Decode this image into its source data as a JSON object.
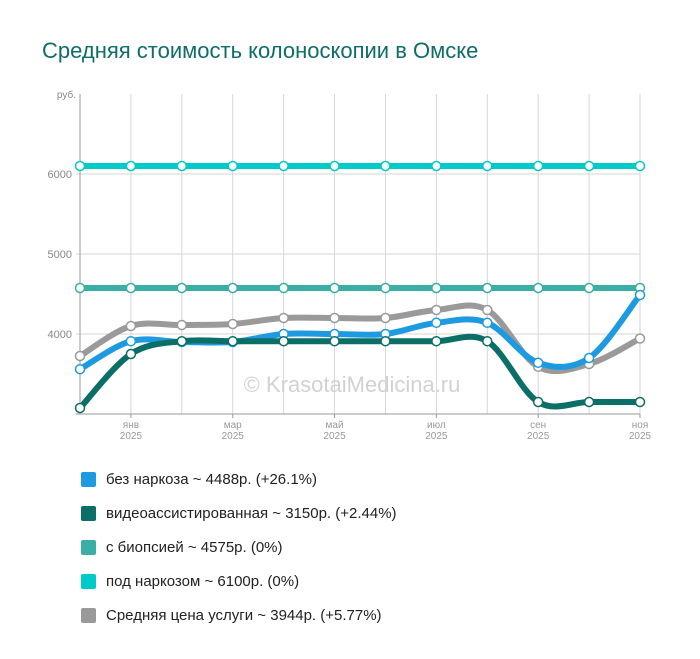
{
  "title": "Средняя стоимость колоноскопии в Омске",
  "watermark": "© KrasotaiMedicina.ru",
  "chart_data": {
    "type": "line",
    "title": "Средняя стоимость колоноскопии в Омске",
    "ylabel": "руб.",
    "ylim": [
      3000,
      7000
    ],
    "yticks": [
      "4000",
      "5000",
      "6000"
    ],
    "ytick_values": [
      4000,
      5000,
      6000
    ],
    "x": [
      "дек 2024",
      "янв 2025",
      "фев 2025",
      "мар 2025",
      "апр 2025",
      "май 2025",
      "июн 2025",
      "июл 2025",
      "авг 2025",
      "сен 2025",
      "окт 2025",
      "ноя 2025"
    ],
    "xtick_labels": [
      {
        "index": 1,
        "month": "янв",
        "year": "2025"
      },
      {
        "index": 3,
        "month": "мар",
        "year": "2025"
      },
      {
        "index": 5,
        "month": "май",
        "year": "2025"
      },
      {
        "index": 7,
        "month": "июл",
        "year": "2025"
      },
      {
        "index": 9,
        "month": "сен",
        "year": "2025"
      },
      {
        "index": 11,
        "month": "ноя",
        "year": "2025"
      }
    ],
    "grid": true,
    "legend_position": "bottom",
    "series": [
      {
        "name": "без наркоза",
        "legend": "без наркоза ~ 4488р. (+26.1%)",
        "color": "#1e9be0",
        "values": [
          3560,
          3910,
          3900,
          3900,
          4000,
          4000,
          4000,
          4140,
          4140,
          3640,
          3700,
          4488
        ]
      },
      {
        "name": "видеоассистированная",
        "legend": "видеоассистированная ~ 3150р. (+2.44%)",
        "color": "#0b6e67",
        "values": [
          3075,
          3750,
          3910,
          3910,
          3910,
          3910,
          3910,
          3910,
          3910,
          3150,
          3150,
          3150
        ]
      },
      {
        "name": "с биопсией",
        "legend": "с биопсией ~ 4575р. (0%)",
        "color": "#3aafa5",
        "values": [
          4575,
          4575,
          4575,
          4575,
          4575,
          4575,
          4575,
          4575,
          4575,
          4575,
          4575,
          4575
        ]
      },
      {
        "name": "под наркозом",
        "legend": "под наркозом ~ 6100р. (0%)",
        "color": "#00cbc8",
        "values": [
          6100,
          6100,
          6100,
          6100,
          6100,
          6100,
          6100,
          6100,
          6100,
          6100,
          6100,
          6100
        ]
      },
      {
        "name": "Средняя цена услуги",
        "legend": "Средняя цена услуги ~ 3944р. (+5.77%)",
        "color": "#9a9a9a",
        "values": [
          3725,
          4100,
          4112,
          4125,
          4200,
          4200,
          4200,
          4300,
          4300,
          3590,
          3625,
          3944
        ]
      }
    ]
  }
}
